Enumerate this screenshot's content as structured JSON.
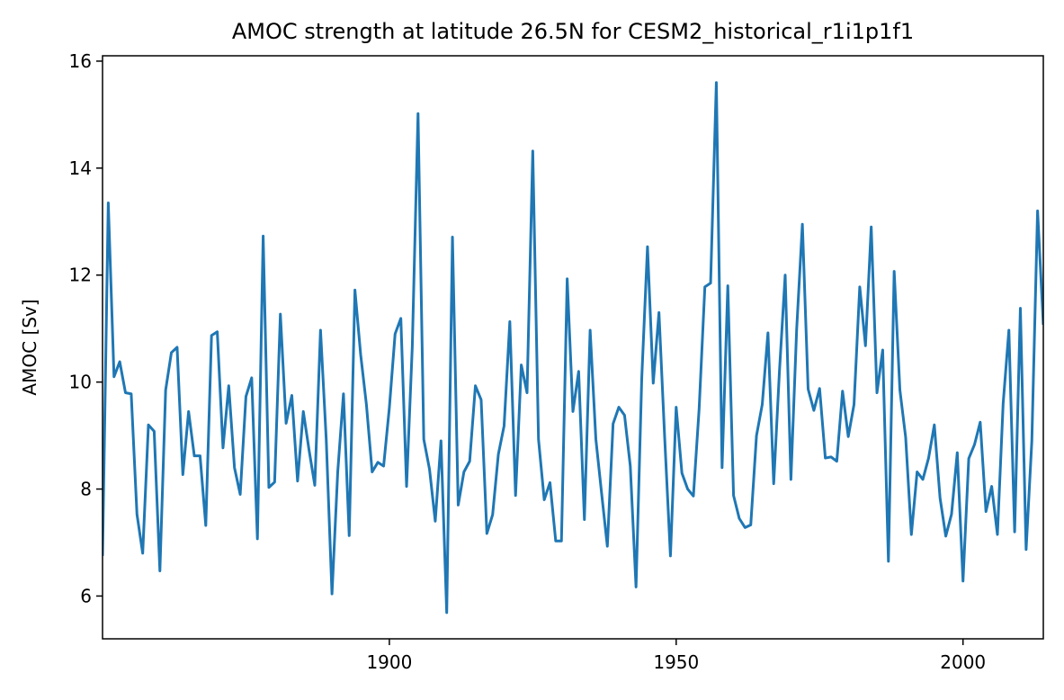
{
  "chart_data": {
    "type": "line",
    "title": "AMOC strength at latitude 26.5N for CESM2_historical_r1i1p1f1",
    "xlabel": "",
    "ylabel": "AMOC [Sv]",
    "xlim": [
      1850,
      2014
    ],
    "ylim": [
      5.2,
      16.1
    ],
    "xticks": [
      1900,
      1950,
      2000
    ],
    "yticks": [
      6,
      8,
      10,
      12,
      14,
      16
    ],
    "grid": false,
    "legend": "none",
    "line_color": "#1f77b4",
    "series": [
      {
        "x": [
          1850,
          1851,
          1852,
          1853,
          1854,
          1855,
          1856,
          1857,
          1858,
          1859,
          1860,
          1861,
          1862,
          1863,
          1864,
          1865,
          1866,
          1867,
          1868,
          1869,
          1870,
          1871,
          1872,
          1873,
          1874,
          1875,
          1876,
          1877,
          1878,
          1879,
          1880,
          1881,
          1882,
          1883,
          1884,
          1885,
          1886,
          1887,
          1888,
          1889,
          1890,
          1891,
          1892,
          1893,
          1894,
          1895,
          1896,
          1897,
          1898,
          1899,
          1900,
          1901,
          1902,
          1903,
          1904,
          1905,
          1906,
          1907,
          1908,
          1909,
          1910,
          1911,
          1912,
          1913,
          1914,
          1915,
          1916,
          1917,
          1918,
          1919,
          1920,
          1921,
          1922,
          1923,
          1924,
          1925,
          1926,
          1927,
          1928,
          1929,
          1930,
          1931,
          1932,
          1933,
          1934,
          1935,
          1936,
          1937,
          1938,
          1939,
          1940,
          1941,
          1942,
          1943,
          1944,
          1945,
          1946,
          1947,
          1948,
          1949,
          1950,
          1951,
          1952,
          1953,
          1954,
          1955,
          1956,
          1957,
          1958,
          1959,
          1960,
          1961,
          1962,
          1963,
          1964,
          1965,
          1966,
          1967,
          1968,
          1969,
          1970,
          1971,
          1972,
          1973,
          1974,
          1975,
          1976,
          1977,
          1978,
          1979,
          1980,
          1981,
          1982,
          1983,
          1984,
          1985,
          1986,
          1987,
          1988,
          1989,
          1990,
          1991,
          1992,
          1993,
          1994,
          1995,
          1996,
          1997,
          1998,
          1999,
          2000,
          2001,
          2002,
          2003,
          2004,
          2005,
          2006,
          2007,
          2008,
          2009,
          2010,
          2011,
          2012,
          2013,
          2014
        ],
        "y": [
          6.75,
          13.35,
          10.1,
          10.38,
          9.8,
          9.78,
          7.53,
          6.8,
          9.2,
          9.08,
          6.47,
          9.85,
          10.55,
          10.65,
          8.27,
          9.45,
          8.62,
          8.62,
          7.32,
          10.87,
          10.94,
          8.77,
          9.93,
          8.4,
          7.9,
          9.73,
          10.08,
          7.07,
          12.73,
          8.03,
          8.13,
          11.27,
          9.23,
          9.75,
          8.15,
          9.45,
          8.73,
          8.07,
          10.97,
          8.92,
          6.04,
          8.32,
          9.78,
          7.13,
          11.72,
          10.51,
          9.58,
          8.32,
          8.5,
          8.43,
          9.52,
          10.9,
          11.19,
          8.05,
          10.67,
          15.02,
          8.93,
          8.37,
          7.4,
          8.9,
          5.69,
          12.71,
          7.7,
          8.32,
          8.52,
          9.93,
          9.67,
          7.17,
          7.52,
          8.65,
          9.18,
          11.13,
          7.88,
          10.32,
          9.8,
          14.32,
          8.93,
          7.8,
          8.12,
          7.03,
          7.03,
          11.93,
          9.45,
          10.2,
          7.43,
          10.97,
          8.93,
          7.92,
          6.93,
          9.22,
          9.53,
          9.38,
          8.43,
          6.17,
          10.08,
          12.53,
          9.98,
          11.3,
          8.95,
          6.75,
          9.53,
          8.3,
          8.0,
          7.87,
          9.5,
          11.78,
          11.85,
          15.6,
          8.4,
          11.8,
          7.88,
          7.45,
          7.28,
          7.33,
          9.0,
          9.58,
          10.92,
          8.1,
          10.2,
          12.0,
          8.18,
          10.98,
          12.95,
          9.87,
          9.47,
          9.88,
          8.58,
          8.6,
          8.52,
          9.83,
          8.98,
          9.58,
          11.78,
          10.68,
          12.9,
          9.8,
          10.6,
          6.65,
          12.07,
          9.85,
          8.97,
          7.15,
          8.32,
          8.18,
          8.58,
          9.2,
          7.83,
          7.12,
          7.53,
          8.68,
          6.28,
          8.57,
          8.83,
          9.25,
          7.58,
          8.05,
          7.15,
          9.6,
          10.97,
          7.2,
          11.38,
          6.87,
          8.9,
          13.2,
          11.07
        ]
      }
    ]
  }
}
